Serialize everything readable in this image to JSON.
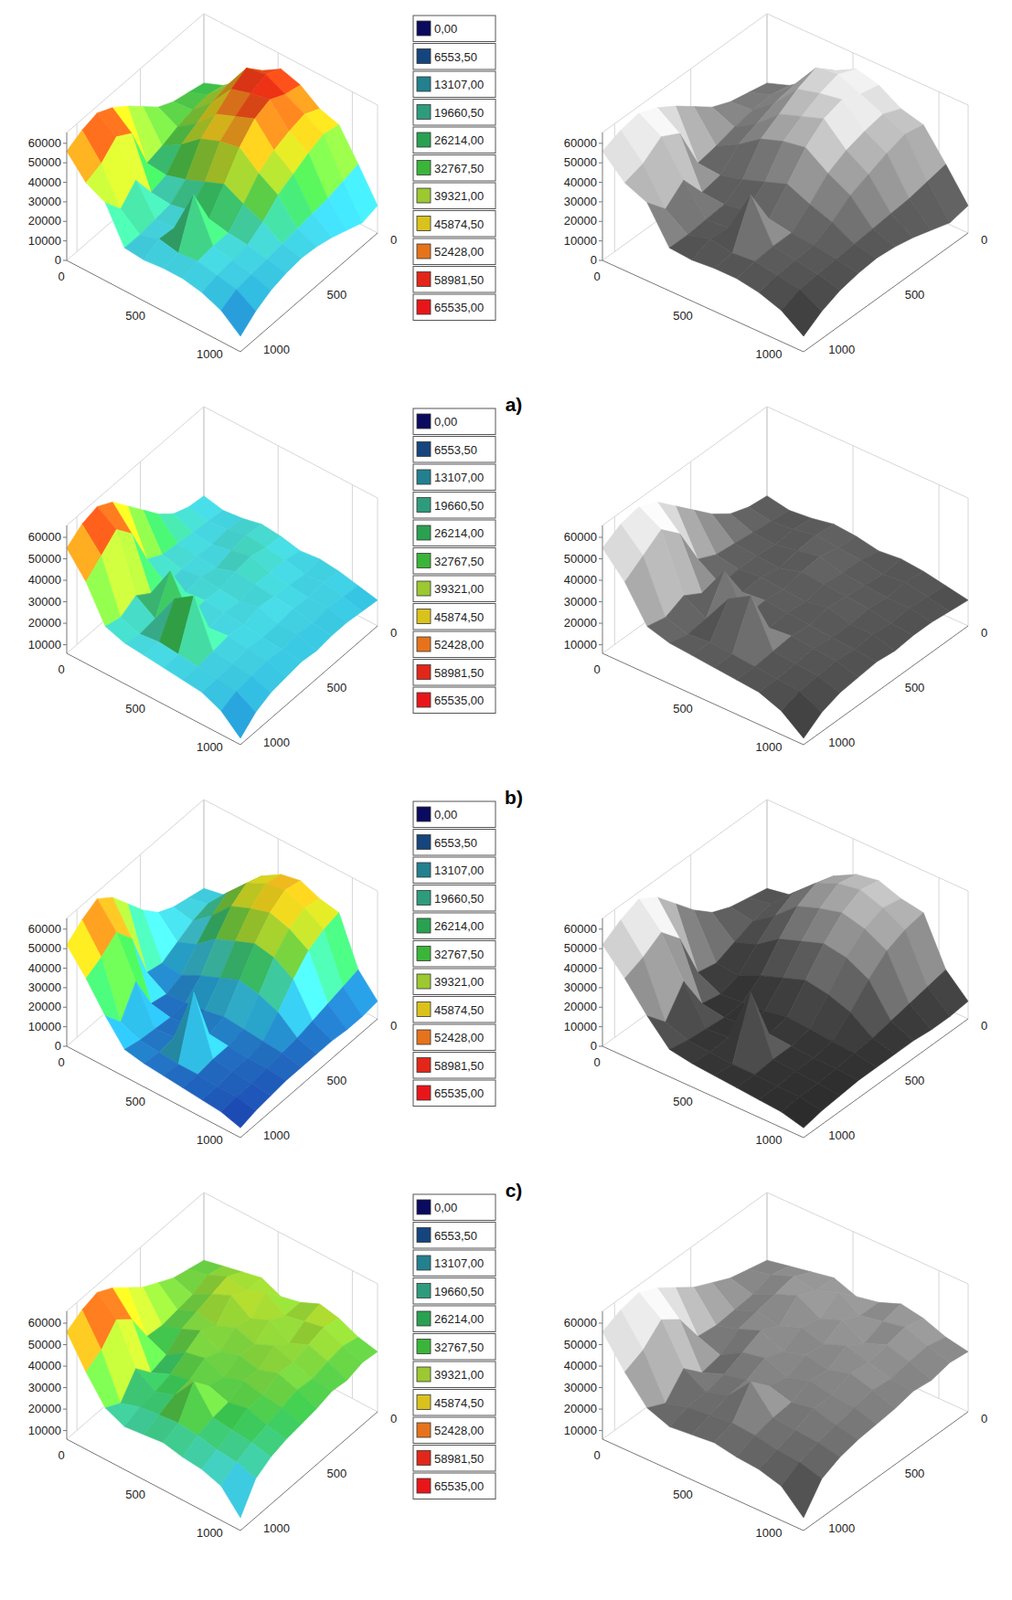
{
  "chart_data": [
    {
      "type": "surface",
      "label": "a)",
      "x": [
        0,
        130,
        260,
        390,
        520,
        650,
        780,
        910,
        1040,
        1170
      ],
      "y": [
        0,
        120,
        240,
        360,
        480,
        600,
        720,
        840,
        960,
        1080
      ],
      "z": [
        [
          30000,
          34000,
          42000,
          52000,
          58000,
          55000,
          48000,
          45000,
          30000,
          14000
        ],
        [
          32000,
          36000,
          46000,
          60000,
          62000,
          57000,
          52000,
          47000,
          28000,
          12000
        ],
        [
          34000,
          35000,
          44000,
          56000,
          59000,
          61000,
          50000,
          44000,
          26000,
          15000
        ],
        [
          38000,
          33000,
          40000,
          50000,
          54000,
          58000,
          47000,
          40000,
          25000,
          18000
        ],
        [
          45000,
          30000,
          36000,
          44000,
          48000,
          50000,
          42000,
          36000,
          24000,
          20000
        ],
        [
          52000,
          28000,
          27000,
          30000,
          34000,
          38000,
          33000,
          29000,
          23000,
          21000
        ],
        [
          58000,
          50000,
          25000,
          24000,
          26000,
          27000,
          25000,
          24000,
          22000,
          20000
        ],
        [
          62000,
          55000,
          38000,
          23000,
          24000,
          46000,
          25000,
          23000,
          21000,
          18000
        ],
        [
          60000,
          48000,
          30000,
          22000,
          25000,
          23000,
          24000,
          22000,
          20000,
          14000
        ],
        [
          56000,
          45000,
          40000,
          22000,
          21000,
          22000,
          22000,
          20000,
          16000,
          8000
        ]
      ],
      "xlim": [
        0,
        1170
      ],
      "xticks": [
        0,
        500,
        1000
      ],
      "ylim": [
        0,
        1080
      ],
      "yticks": [
        0,
        500,
        1000
      ],
      "zlim": [
        0,
        65535
      ],
      "zticks": [
        0,
        10000,
        20000,
        30000,
        40000,
        50000,
        60000
      ],
      "color_scale": {
        "levels": [
          {
            "value": 0,
            "label": "0,00"
          },
          {
            "value": 6553.5,
            "label": "6553,50"
          },
          {
            "value": 13107,
            "label": "13107,00"
          },
          {
            "value": 19660.5,
            "label": "19660,50"
          },
          {
            "value": 26214,
            "label": "26214,00"
          },
          {
            "value": 32767.5,
            "label": "32767,50"
          },
          {
            "value": 39321,
            "label": "39321,00"
          },
          {
            "value": 45874.5,
            "label": "45874,50"
          },
          {
            "value": 52428,
            "label": "52428,00"
          },
          {
            "value": 58981.5,
            "label": "58981,50"
          },
          {
            "value": 65535,
            "label": "65535,00"
          }
        ],
        "colors": [
          "#0a0a5e",
          "#16457e",
          "#23808f",
          "#2e9c7c",
          "#2aa150",
          "#3ab53a",
          "#9cc832",
          "#d9c21c",
          "#e6731c",
          "#e3261a",
          "#e8161a"
        ]
      }
    },
    {
      "type": "surface",
      "label": "b)",
      "x": [
        0,
        130,
        260,
        390,
        520,
        650,
        780,
        910,
        1040,
        1170
      ],
      "y": [
        0,
        120,
        240,
        360,
        480,
        600,
        720,
        840,
        960,
        1080
      ],
      "z": [
        [
          24000,
          22000,
          23000,
          25000,
          24000,
          22000,
          23000,
          22000,
          20000,
          18000
        ],
        [
          25000,
          23000,
          24000,
          26000,
          25000,
          24000,
          22000,
          23000,
          21000,
          19000
        ],
        [
          28000,
          24000,
          23000,
          25000,
          27000,
          24000,
          23000,
          22000,
          22000,
          20000
        ],
        [
          34000,
          25000,
          24000,
          23000,
          26000,
          25000,
          24000,
          23000,
          21000,
          20000
        ],
        [
          42000,
          26000,
          24000,
          25000,
          24000,
          23000,
          25000,
          22000,
          22000,
          19000
        ],
        [
          50000,
          30000,
          23000,
          24000,
          25000,
          24000,
          23000,
          22000,
          21000,
          20000
        ],
        [
          58000,
          48000,
          25000,
          40000,
          24000,
          23000,
          24000,
          23000,
          22000,
          19000
        ],
        [
          62000,
          56000,
          30000,
          24000,
          38000,
          44000,
          23000,
          22000,
          21000,
          18000
        ],
        [
          60000,
          50000,
          26000,
          23000,
          24000,
          23000,
          22000,
          21000,
          20000,
          15000
        ],
        [
          55000,
          44000,
          28000,
          25000,
          24000,
          23000,
          22000,
          21000,
          17000,
          9000
        ]
      ],
      "xlim": [
        0,
        1170
      ],
      "xticks": [
        0,
        500,
        1000
      ],
      "ylim": [
        0,
        1080
      ],
      "yticks": [
        0,
        500,
        1000
      ],
      "zlim": [
        6000,
        65535
      ],
      "zticks": [
        10000,
        20000,
        30000,
        40000,
        50000,
        60000
      ],
      "color_scale": {
        "levels": [
          {
            "value": 0,
            "label": "0,00"
          },
          {
            "value": 6553.5,
            "label": "6553,50"
          },
          {
            "value": 13107,
            "label": "13107,00"
          },
          {
            "value": 19660.5,
            "label": "19660,50"
          },
          {
            "value": 26214,
            "label": "26214,00"
          },
          {
            "value": 32767.5,
            "label": "32767,50"
          },
          {
            "value": 39321,
            "label": "39321,00"
          },
          {
            "value": 45874.5,
            "label": "45874,50"
          },
          {
            "value": 52428,
            "label": "52428,00"
          },
          {
            "value": 58981.5,
            "label": "58981,50"
          },
          {
            "value": 65535,
            "label": "65535,00"
          }
        ],
        "colors": [
          "#0a0a5e",
          "#16457e",
          "#23808f",
          "#2e9c7c",
          "#2aa150",
          "#3ab53a",
          "#9cc832",
          "#d9c21c",
          "#e6731c",
          "#e3261a",
          "#e8161a"
        ]
      }
    },
    {
      "type": "surface",
      "label": "c)",
      "x": [
        0,
        130,
        260,
        390,
        520,
        650,
        780,
        910,
        1040,
        1170
      ],
      "y": [
        0,
        120,
        240,
        360,
        480,
        600,
        720,
        840,
        960,
        1080
      ],
      "z": [
        [
          20000,
          22000,
          30000,
          42000,
          48000,
          50000,
          46000,
          44000,
          20000,
          9000
        ],
        [
          22000,
          24000,
          35000,
          45000,
          50000,
          52000,
          48000,
          42000,
          18000,
          8000
        ],
        [
          24000,
          22000,
          30000,
          40000,
          44000,
          47000,
          44000,
          38000,
          16000,
          8000
        ],
        [
          28000,
          18000,
          22000,
          30000,
          34000,
          38000,
          36000,
          30000,
          14000,
          9000
        ],
        [
          36000,
          14000,
          13000,
          18000,
          22000,
          26000,
          24000,
          20000,
          12000,
          9000
        ],
        [
          46000,
          16000,
          10000,
          11000,
          12000,
          14000,
          13000,
          12000,
          11000,
          9000
        ],
        [
          56000,
          40000,
          12000,
          10000,
          11000,
          12000,
          11000,
          10000,
          10000,
          9000
        ],
        [
          62000,
          50000,
          30000,
          11000,
          12000,
          40000,
          11000,
          10000,
          9000,
          8000
        ],
        [
          58000,
          44000,
          16000,
          12000,
          11000,
          10000,
          10000,
          9000,
          9000,
          7000
        ],
        [
          52000,
          40000,
          26000,
          14000,
          12000,
          11000,
          10000,
          9000,
          8000,
          5000
        ]
      ],
      "xlim": [
        0,
        1170
      ],
      "xticks": [
        0,
        500,
        1000
      ],
      "ylim": [
        0,
        1080
      ],
      "yticks": [
        0,
        500,
        1000
      ],
      "zlim": [
        0,
        65535
      ],
      "zticks": [
        0,
        10000,
        20000,
        30000,
        40000,
        50000,
        60000
      ],
      "color_scale": {
        "levels": [
          {
            "value": 0,
            "label": "0,00"
          },
          {
            "value": 6553.5,
            "label": "6553,50"
          },
          {
            "value": 13107,
            "label": "13107,00"
          },
          {
            "value": 19660.5,
            "label": "19660,50"
          },
          {
            "value": 26214,
            "label": "26214,00"
          },
          {
            "value": 32767.5,
            "label": "32767,50"
          },
          {
            "value": 39321,
            "label": "39321,00"
          },
          {
            "value": 45874.5,
            "label": "45874,50"
          },
          {
            "value": 52428,
            "label": "52428,00"
          },
          {
            "value": 58981.5,
            "label": "58981,50"
          },
          {
            "value": 65535,
            "label": "65535,00"
          }
        ],
        "colors": [
          "#0a0a5e",
          "#16457e",
          "#23808f",
          "#2e9c7c",
          "#2aa150",
          "#3ab53a",
          "#9cc832",
          "#d9c21c",
          "#e6731c",
          "#e3261a",
          "#e8161a"
        ]
      }
    },
    {
      "type": "surface",
      "x": [
        0,
        130,
        260,
        390,
        520,
        650,
        780,
        910,
        1040,
        1170
      ],
      "y": [
        0,
        120,
        240,
        360,
        480,
        600,
        720,
        840,
        960,
        1080
      ],
      "z": [
        [
          34000,
          36000,
          38000,
          40000,
          36000,
          38000,
          42000,
          40000,
          36000,
          34000
        ],
        [
          36000,
          38000,
          42000,
          40000,
          44000,
          38000,
          40000,
          42000,
          38000,
          35000
        ],
        [
          38000,
          35000,
          40000,
          44000,
          38000,
          42000,
          36000,
          40000,
          37000,
          33000
        ],
        [
          42000,
          34000,
          38000,
          36000,
          40000,
          37000,
          41000,
          38000,
          35000,
          34000
        ],
        [
          46000,
          33000,
          36000,
          40000,
          35000,
          38000,
          36000,
          39000,
          36000,
          32000
        ],
        [
          52000,
          34000,
          30000,
          36000,
          38000,
          34000,
          37000,
          35000,
          34000,
          31000
        ],
        [
          58000,
          48000,
          28000,
          32000,
          34000,
          36000,
          33000,
          35000,
          32000,
          30000
        ],
        [
          62000,
          54000,
          36000,
          30000,
          33000,
          44000,
          32000,
          31000,
          30000,
          28000
        ],
        [
          60000,
          46000,
          26000,
          29000,
          30000,
          31000,
          30000,
          28000,
          27000,
          24000
        ],
        [
          56000,
          42000,
          30000,
          26000,
          27000,
          28000,
          26000,
          25000,
          22000,
          12000
        ]
      ],
      "xlim": [
        0,
        1170
      ],
      "xticks": [
        0,
        500,
        1000
      ],
      "ylim": [
        0,
        1080
      ],
      "yticks": [
        0,
        500,
        1000
      ],
      "zlim": [
        6000,
        65535
      ],
      "zticks": [
        10000,
        20000,
        30000,
        40000,
        50000,
        60000
      ],
      "color_scale": {
        "levels": [
          {
            "value": 0,
            "label": "0,00"
          },
          {
            "value": 6553.5,
            "label": "6553,50"
          },
          {
            "value": 13107,
            "label": "13107,00"
          },
          {
            "value": 19660.5,
            "label": "19660,50"
          },
          {
            "value": 26214,
            "label": "26214,00"
          },
          {
            "value": 32767.5,
            "label": "32767,50"
          },
          {
            "value": 39321,
            "label": "39321,00"
          },
          {
            "value": 45874.5,
            "label": "45874,50"
          },
          {
            "value": 52428,
            "label": "52428,00"
          },
          {
            "value": 58981.5,
            "label": "58981,50"
          },
          {
            "value": 65535,
            "label": "65535,00"
          }
        ],
        "colors": [
          "#0a0a5e",
          "#16457e",
          "#23808f",
          "#2e9c7c",
          "#2aa150",
          "#3ab53a",
          "#9cc832",
          "#d9c21c",
          "#e6731c",
          "#e3261a",
          "#e8161a"
        ]
      }
    }
  ]
}
